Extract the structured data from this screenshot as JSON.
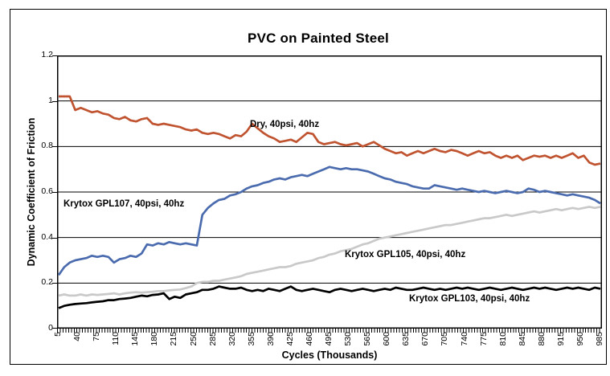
{
  "figure_title": "PVC on Painted Steel",
  "chart_data": {
    "type": "line",
    "title": "PVC on Painted Steel",
    "xlabel": "Cycles (Thousands)",
    "ylabel": "Dynamic Coefficient of Friction",
    "xlim": [
      5,
      985
    ],
    "ylim": [
      0,
      1.2
    ],
    "grid": "horizontal",
    "legend": "inline-annotations",
    "x_tick_labels": [
      "5",
      "40",
      "75",
      "110",
      "145",
      "180",
      "215",
      "250",
      "285",
      "320",
      "355",
      "390",
      "425",
      "460",
      "495",
      "530",
      "565",
      "600",
      "635",
      "670",
      "705",
      "740",
      "775",
      "810",
      "845",
      "880",
      "915",
      "950",
      "985"
    ],
    "x_ticks": [
      5,
      40,
      75,
      110,
      145,
      180,
      215,
      250,
      285,
      320,
      355,
      390,
      425,
      460,
      495,
      530,
      565,
      600,
      635,
      670,
      705,
      740,
      775,
      810,
      845,
      880,
      915,
      950,
      985
    ],
    "y_tick_labels": [
      "0",
      "0.2",
      "0.4",
      "0.6",
      "0.8",
      "1",
      "1.2"
    ],
    "y_ticks": [
      0,
      0.2,
      0.4,
      0.6,
      0.8,
      1,
      1.2
    ],
    "x": [
      5,
      15,
      25,
      35,
      45,
      55,
      65,
      75,
      85,
      95,
      105,
      115,
      125,
      135,
      145,
      155,
      165,
      175,
      185,
      195,
      205,
      215,
      225,
      235,
      245,
      255,
      265,
      275,
      285,
      295,
      305,
      315,
      325,
      335,
      345,
      355,
      365,
      375,
      385,
      395,
      405,
      415,
      425,
      435,
      445,
      455,
      465,
      475,
      485,
      495,
      505,
      515,
      525,
      535,
      545,
      555,
      565,
      575,
      585,
      595,
      605,
      615,
      625,
      635,
      645,
      655,
      665,
      675,
      685,
      695,
      705,
      715,
      725,
      735,
      745,
      755,
      765,
      775,
      785,
      795,
      805,
      815,
      825,
      835,
      845,
      855,
      865,
      875,
      885,
      895,
      905,
      915,
      925,
      935,
      945,
      955,
      965,
      975,
      985
    ],
    "series": [
      {
        "name": "Dry, 40psi, 40hz",
        "color": "#C05330",
        "values": [
          1.02,
          1.02,
          1.02,
          0.96,
          0.97,
          0.96,
          0.95,
          0.955,
          0.945,
          0.94,
          0.925,
          0.92,
          0.93,
          0.915,
          0.91,
          0.92,
          0.925,
          0.9,
          0.895,
          0.9,
          0.895,
          0.89,
          0.885,
          0.875,
          0.87,
          0.875,
          0.86,
          0.855,
          0.86,
          0.855,
          0.845,
          0.835,
          0.85,
          0.845,
          0.865,
          0.9,
          0.88,
          0.86,
          0.845,
          0.835,
          0.82,
          0.825,
          0.83,
          0.82,
          0.84,
          0.86,
          0.855,
          0.82,
          0.81,
          0.815,
          0.82,
          0.81,
          0.805,
          0.81,
          0.815,
          0.8,
          0.81,
          0.82,
          0.805,
          0.79,
          0.78,
          0.77,
          0.775,
          0.76,
          0.77,
          0.78,
          0.77,
          0.78,
          0.79,
          0.78,
          0.775,
          0.785,
          0.78,
          0.77,
          0.76,
          0.77,
          0.78,
          0.77,
          0.775,
          0.76,
          0.75,
          0.76,
          0.75,
          0.76,
          0.74,
          0.75,
          0.76,
          0.755,
          0.76,
          0.75,
          0.76,
          0.75,
          0.76,
          0.77,
          0.75,
          0.76,
          0.73,
          0.72,
          0.725
        ]
      },
      {
        "name": "Krytox GPL107, 40psi, 40hz",
        "color": "#4A6BAE",
        "values": [
          0.235,
          0.27,
          0.29,
          0.3,
          0.305,
          0.31,
          0.32,
          0.315,
          0.32,
          0.315,
          0.29,
          0.305,
          0.31,
          0.32,
          0.315,
          0.33,
          0.37,
          0.365,
          0.375,
          0.37,
          0.38,
          0.375,
          0.37,
          0.375,
          0.37,
          0.365,
          0.5,
          0.53,
          0.55,
          0.565,
          0.57,
          0.585,
          0.59,
          0.6,
          0.615,
          0.625,
          0.63,
          0.64,
          0.645,
          0.655,
          0.66,
          0.655,
          0.665,
          0.67,
          0.675,
          0.67,
          0.68,
          0.69,
          0.7,
          0.71,
          0.705,
          0.7,
          0.705,
          0.7,
          0.7,
          0.695,
          0.69,
          0.68,
          0.67,
          0.66,
          0.655,
          0.645,
          0.64,
          0.635,
          0.625,
          0.62,
          0.615,
          0.615,
          0.63,
          0.625,
          0.62,
          0.615,
          0.61,
          0.615,
          0.61,
          0.605,
          0.6,
          0.605,
          0.6,
          0.595,
          0.6,
          0.605,
          0.6,
          0.595,
          0.6,
          0.615,
          0.61,
          0.6,
          0.605,
          0.6,
          0.595,
          0.59,
          0.585,
          0.59,
          0.585,
          0.58,
          0.575,
          0.565,
          0.55
        ]
      },
      {
        "name": "Krytox GPL105, 40psi, 40hz",
        "color": "#C9C9C9",
        "values": [
          0.145,
          0.15,
          0.145,
          0.145,
          0.15,
          0.145,
          0.15,
          0.148,
          0.15,
          0.152,
          0.155,
          0.15,
          0.155,
          0.158,
          0.16,
          0.158,
          0.16,
          0.162,
          0.165,
          0.165,
          0.168,
          0.17,
          0.172,
          0.178,
          0.185,
          0.2,
          0.205,
          0.205,
          0.21,
          0.21,
          0.215,
          0.22,
          0.225,
          0.23,
          0.24,
          0.245,
          0.25,
          0.255,
          0.26,
          0.265,
          0.27,
          0.27,
          0.275,
          0.285,
          0.29,
          0.295,
          0.3,
          0.31,
          0.315,
          0.325,
          0.33,
          0.34,
          0.345,
          0.35,
          0.36,
          0.37,
          0.375,
          0.385,
          0.395,
          0.4,
          0.405,
          0.41,
          0.415,
          0.42,
          0.425,
          0.43,
          0.435,
          0.44,
          0.445,
          0.45,
          0.455,
          0.455,
          0.46,
          0.465,
          0.47,
          0.475,
          0.48,
          0.485,
          0.485,
          0.49,
          0.495,
          0.5,
          0.495,
          0.5,
          0.505,
          0.51,
          0.515,
          0.51,
          0.515,
          0.52,
          0.525,
          0.52,
          0.525,
          0.53,
          0.525,
          0.53,
          0.535,
          0.53,
          0.535
        ]
      },
      {
        "name": "Krytox GPL103, 40psi, 40hz",
        "color": "#000000",
        "values": [
          0.09,
          0.1,
          0.105,
          0.108,
          0.11,
          0.112,
          0.115,
          0.118,
          0.12,
          0.125,
          0.125,
          0.13,
          0.132,
          0.135,
          0.14,
          0.145,
          0.142,
          0.148,
          0.15,
          0.155,
          0.13,
          0.14,
          0.135,
          0.15,
          0.155,
          0.16,
          0.17,
          0.17,
          0.175,
          0.185,
          0.18,
          0.175,
          0.175,
          0.18,
          0.17,
          0.165,
          0.17,
          0.165,
          0.175,
          0.17,
          0.165,
          0.175,
          0.185,
          0.17,
          0.165,
          0.17,
          0.175,
          0.17,
          0.165,
          0.16,
          0.17,
          0.175,
          0.17,
          0.165,
          0.17,
          0.175,
          0.17,
          0.165,
          0.17,
          0.175,
          0.17,
          0.18,
          0.175,
          0.17,
          0.17,
          0.175,
          0.18,
          0.175,
          0.17,
          0.175,
          0.17,
          0.175,
          0.18,
          0.175,
          0.18,
          0.175,
          0.17,
          0.175,
          0.18,
          0.175,
          0.17,
          0.175,
          0.18,
          0.175,
          0.17,
          0.175,
          0.18,
          0.175,
          0.18,
          0.175,
          0.17,
          0.175,
          0.18,
          0.175,
          0.18,
          0.175,
          0.17,
          0.18,
          0.175
        ]
      }
    ]
  }
}
